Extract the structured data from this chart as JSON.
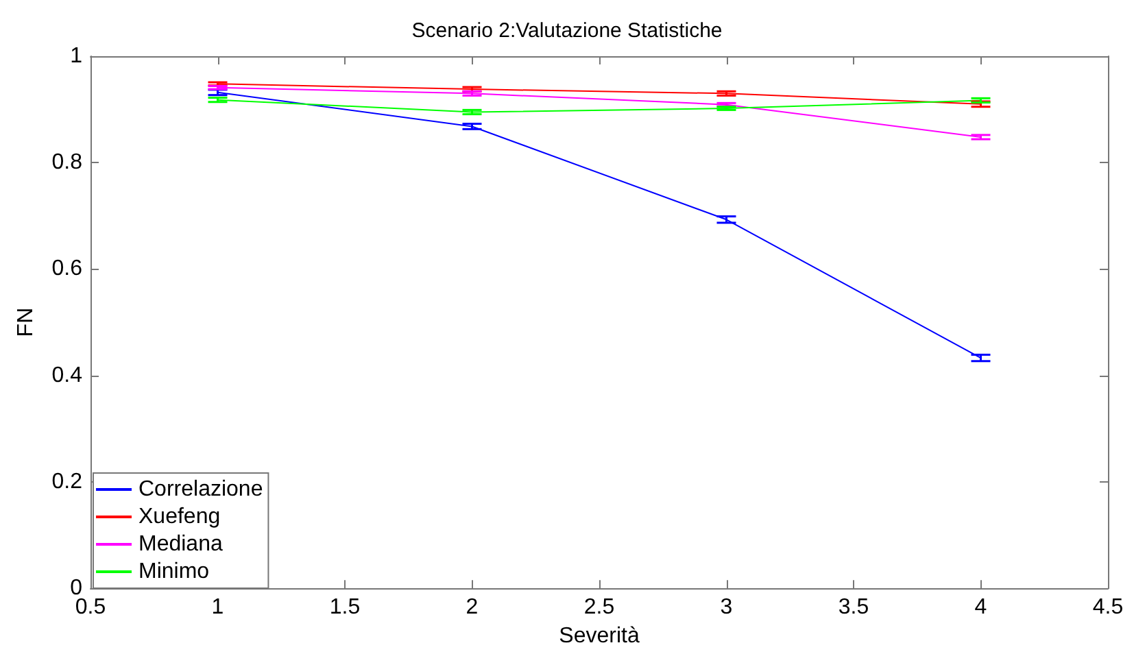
{
  "chart_data": {
    "type": "line",
    "title": "Scenario 2:Valutazione Statistiche",
    "xlabel": "Severità",
    "ylabel": "FN",
    "x": [
      1,
      2,
      3,
      4
    ],
    "series": [
      {
        "name": "Correlazione",
        "color": "#0000ff",
        "values": [
          0.932,
          0.868,
          0.693,
          0.433
        ],
        "errors": [
          0.005,
          0.005,
          0.006,
          0.006
        ]
      },
      {
        "name": "Xuefeng",
        "color": "#ff0000",
        "values": [
          0.948,
          0.938,
          0.93,
          0.91
        ],
        "errors": [
          0.003,
          0.004,
          0.004,
          0.005
        ]
      },
      {
        "name": "Mediana",
        "color": "#ff00ff",
        "values": [
          0.941,
          0.93,
          0.909,
          0.848
        ],
        "errors": [
          0.003,
          0.004,
          0.003,
          0.004
        ]
      },
      {
        "name": "Minimo",
        "color": "#00ff00",
        "values": [
          0.918,
          0.895,
          0.902,
          0.917
        ],
        "errors": [
          0.004,
          0.004,
          0.003,
          0.004
        ]
      }
    ],
    "xlim": [
      0.5,
      4.5
    ],
    "xticks": [
      0.5,
      1,
      1.5,
      2,
      2.5,
      3,
      3.5,
      4,
      4.5
    ],
    "ylim": [
      0,
      1
    ],
    "yticks": [
      0,
      0.2,
      0.4,
      0.6,
      0.8,
      1
    ],
    "grid": false,
    "legend": "bottom left",
    "marker": "none",
    "line_style": "solid"
  }
}
